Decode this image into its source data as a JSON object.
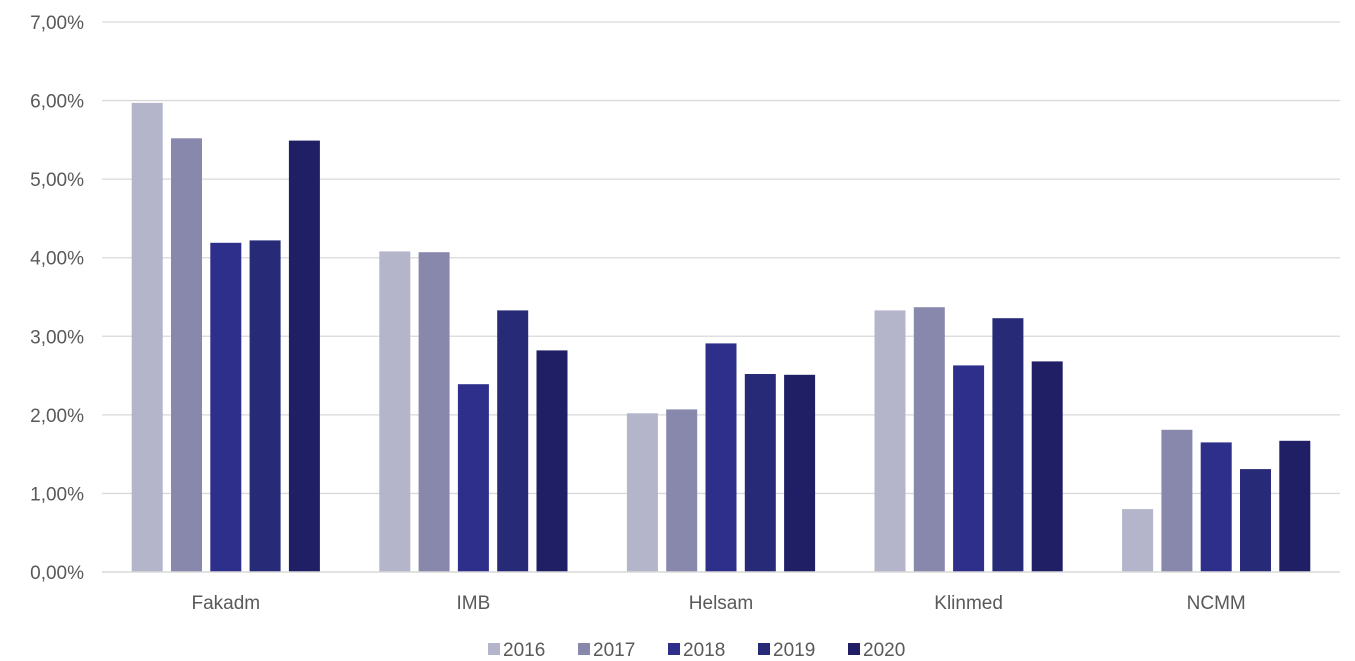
{
  "chart_data": {
    "type": "bar",
    "categories": [
      "Fakadm",
      "IMB",
      "Helsam",
      "Klinmed",
      "NCMM"
    ],
    "series": [
      {
        "name": "2016",
        "color": "#b4b5ca",
        "values": [
          5.97,
          4.08,
          2.02,
          3.33,
          0.8
        ]
      },
      {
        "name": "2017",
        "color": "#8888ad",
        "values": [
          5.52,
          4.07,
          2.07,
          3.37,
          1.81
        ]
      },
      {
        "name": "2018",
        "color": "#2e2f8b",
        "values": [
          4.19,
          2.39,
          2.91,
          2.63,
          1.65
        ]
      },
      {
        "name": "2019",
        "color": "#272a77",
        "values": [
          4.22,
          3.33,
          2.52,
          3.23,
          1.31
        ]
      },
      {
        "name": "2020",
        "color": "#201f65",
        "values": [
          5.49,
          2.82,
          2.51,
          2.68,
          1.67
        ]
      }
    ],
    "yticks": [
      "0,00%",
      "1,00%",
      "2,00%",
      "3,00%",
      "4,00%",
      "5,00%",
      "6,00%",
      "7,00%"
    ],
    "ylim": [
      0,
      7
    ],
    "grid": true,
    "legend_position": "bottom",
    "title": "",
    "xlabel": "",
    "ylabel": ""
  }
}
